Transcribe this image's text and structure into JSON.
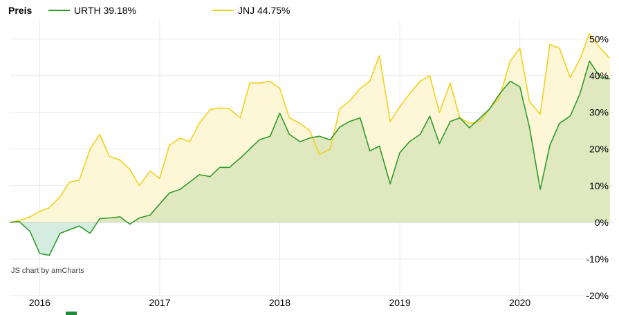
{
  "legend": {
    "title": "Preis",
    "items": [
      {
        "label": "URTH 39.18%",
        "color": "#2e9a2a"
      },
      {
        "label": "JNJ 44.75%",
        "color": "#f2d01e"
      }
    ]
  },
  "credit": "JS chart by amCharts",
  "colors": {
    "urth_line": "#2e9a2a",
    "jnj_line": "#f2d01e",
    "urth_fill_positive": "#dfe8bf",
    "urth_fill_negative": "#d5ede1",
    "jnj_fill": "#fdf7d8",
    "bottom_mark": "#1f8a3a"
  },
  "chart_data": {
    "type": "line",
    "x_unit": "year",
    "xlim": [
      2015.75,
      2020.78
    ],
    "ylim": [
      -20,
      55
    ],
    "y_ticks": [
      50,
      40,
      30,
      20,
      10,
      0,
      -10,
      -20
    ],
    "y_tick_labels": [
      "50%",
      "40%",
      "30%",
      "20%",
      "10%",
      "0%",
      "-10%",
      "-20%"
    ],
    "x_ticks": [
      2016,
      2017,
      2018,
      2019,
      2020
    ],
    "x_tick_labels": [
      "2016",
      "2017",
      "2018",
      "2019",
      "2020"
    ],
    "grid": true,
    "series": [
      {
        "name": "URTH",
        "x": [
          2015.75,
          2015.83,
          2015.92,
          2016.0,
          2016.08,
          2016.17,
          2016.25,
          2016.33,
          2016.42,
          2016.5,
          2016.58,
          2016.67,
          2016.75,
          2016.83,
          2016.92,
          2017.0,
          2017.08,
          2017.17,
          2017.25,
          2017.33,
          2017.42,
          2017.5,
          2017.58,
          2017.67,
          2017.75,
          2017.83,
          2017.92,
          2018.0,
          2018.08,
          2018.17,
          2018.25,
          2018.33,
          2018.42,
          2018.5,
          2018.58,
          2018.67,
          2018.75,
          2018.83,
          2018.92,
          2019.0,
          2019.08,
          2019.17,
          2019.25,
          2019.33,
          2019.42,
          2019.5,
          2019.58,
          2019.67,
          2019.75,
          2019.83,
          2019.92,
          2020.0,
          2020.08,
          2020.17,
          2020.25,
          2020.33,
          2020.42,
          2020.5,
          2020.58,
          2020.67,
          2020.75
        ],
        "values": [
          0,
          0.2,
          -2.5,
          -8.5,
          -9,
          -3,
          -2,
          -1,
          -3,
          1,
          1.2,
          1.5,
          -0.5,
          1.2,
          2,
          5,
          8,
          9,
          11,
          13,
          12.5,
          15,
          15,
          17.5,
          20,
          22.5,
          23.5,
          29.8,
          24,
          22,
          23,
          23.5,
          22.5,
          26,
          27.5,
          28.5,
          19.5,
          20.8,
          10.5,
          19,
          22,
          24,
          29,
          21.5,
          27.5,
          28.5,
          25.8,
          28.5,
          31,
          35,
          38.5,
          37,
          26,
          9,
          21,
          27,
          29,
          35,
          44,
          39.5,
          39.18
        ]
      },
      {
        "name": "JNJ",
        "x": [
          2015.75,
          2015.83,
          2015.92,
          2016.0,
          2016.08,
          2016.17,
          2016.25,
          2016.33,
          2016.42,
          2016.5,
          2016.58,
          2016.67,
          2016.75,
          2016.83,
          2016.92,
          2017.0,
          2017.08,
          2017.17,
          2017.25,
          2017.33,
          2017.42,
          2017.5,
          2017.58,
          2017.67,
          2017.75,
          2017.83,
          2017.92,
          2018.0,
          2018.08,
          2018.17,
          2018.25,
          2018.33,
          2018.42,
          2018.5,
          2018.58,
          2018.67,
          2018.75,
          2018.83,
          2018.92,
          2019.0,
          2019.08,
          2019.17,
          2019.25,
          2019.33,
          2019.42,
          2019.5,
          2019.58,
          2019.67,
          2019.75,
          2019.83,
          2019.92,
          2020.0,
          2020.08,
          2020.17,
          2020.25,
          2020.33,
          2020.42,
          2020.5,
          2020.58,
          2020.67,
          2020.75
        ],
        "values": [
          0,
          0.5,
          1.5,
          3,
          4,
          7,
          11,
          11.5,
          20,
          24,
          18,
          17,
          14.5,
          10,
          14,
          12,
          21,
          23,
          22,
          27,
          30.8,
          31.2,
          31,
          28.5,
          38,
          38,
          38.5,
          36.5,
          28.5,
          27,
          25,
          18.5,
          20,
          31,
          33,
          36.5,
          38.5,
          45.5,
          27.5,
          31.5,
          35,
          38.5,
          40,
          30,
          38,
          28.5,
          27,
          27.5,
          31,
          34,
          44,
          47.5,
          33,
          29.5,
          48.5,
          47.5,
          39.5,
          44.5,
          51.5,
          47.5,
          44.75
        ]
      }
    ]
  }
}
